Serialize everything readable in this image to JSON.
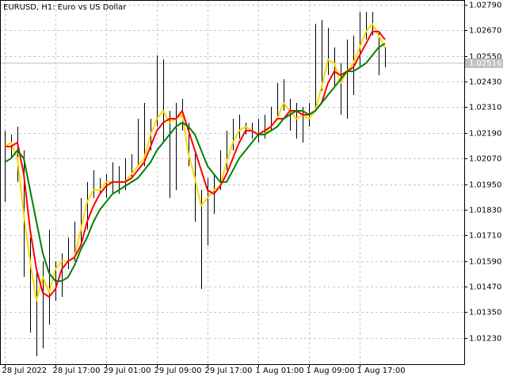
{
  "chart_data": {
    "type": "ohlc",
    "title": "EURUSD, H1:  Euro vs US Dollar",
    "categories": [
      "28 Jul 2022",
      null,
      null,
      null,
      null,
      null,
      null,
      null,
      "28 Jul 17:00",
      null,
      null,
      null,
      null,
      null,
      null,
      null,
      "29 Jul 01:00",
      null,
      null,
      null,
      null,
      null,
      null,
      null,
      "29 Jul 09:00",
      null,
      null,
      null,
      null,
      null,
      null,
      null,
      "29 Jul 17:00",
      null,
      null,
      null,
      null,
      null,
      null,
      null,
      "1 Aug 01:00",
      null,
      null,
      null,
      null,
      null,
      null,
      null,
      "1 Aug 09:00",
      null,
      null,
      null,
      null,
      null,
      null,
      null,
      "1 Aug 17:00",
      null,
      null,
      null,
      null
    ],
    "high": [
      1.022,
      1.02182,
      1.02219,
      1.02108,
      1.017,
      1.01552,
      1.01589,
      1.01737,
      1.01589,
      1.01626,
      1.017,
      1.01774,
      1.01885,
      1.0196,
      1.02015,
      1.01978,
      1.01997,
      1.02052,
      1.02034,
      1.02071,
      1.02089,
      1.02256,
      1.0233,
      1.02256,
      1.02553,
      1.02534,
      1.02293,
      1.0233,
      1.02349,
      1.02238,
      1.02108,
      1.01922,
      1.01978,
      1.01997,
      1.02108,
      1.022,
      1.02256,
      1.02275,
      1.02238,
      1.02238,
      1.02256,
      1.02275,
      1.02312,
      1.02423,
      1.02441,
      1.02349,
      1.0233,
      1.02312,
      1.0233,
      1.02701,
      1.02719,
      1.02682,
      1.0259,
      1.02516,
      1.02627,
      1.02645,
      1.02756,
      1.02756,
      1.02756,
      1.02664,
      1.0259
    ],
    "low": [
      1.01867,
      1.02071,
      1.0196,
      1.01515,
      1.01255,
      1.01144,
      1.01181,
      1.01292,
      1.01404,
      1.01422,
      1.01552,
      1.01589,
      1.01663,
      1.01737,
      1.01885,
      1.01904,
      1.01885,
      1.01904,
      1.01904,
      1.01922,
      1.01978,
      1.02034,
      1.02034,
      1.02108,
      1.02219,
      1.02145,
      1.01885,
      1.01922,
      1.022,
      1.02034,
      1.01774,
      1.01459,
      1.01663,
      1.01811,
      1.01922,
      1.02015,
      1.02108,
      1.02163,
      1.02182,
      1.02163,
      1.02145,
      1.02163,
      1.022,
      1.02256,
      1.02293,
      1.022,
      1.02163,
      1.02145,
      1.02219,
      1.02293,
      1.02386,
      1.0246,
      1.02404,
      1.02275,
      1.02256,
      1.02367,
      1.02497,
      1.02627,
      1.02645,
      1.0246,
      1.02497
    ],
    "bar_color": "#000000",
    "series": [
      {
        "color": "#ffd700",
        "values": [
          1.02126,
          1.02145,
          1.02071,
          1.01811,
          1.01589,
          1.01404,
          1.01515,
          1.01441,
          1.01552,
          1.01589,
          1.01589,
          1.01607,
          1.01737,
          1.01867,
          1.01922,
          1.01922,
          1.0196,
          1.0196,
          1.0196,
          1.0196,
          1.01997,
          1.02034,
          1.02071,
          1.02182,
          1.02256,
          1.02293,
          1.02238,
          1.02256,
          1.02275,
          1.02089,
          1.01978,
          1.01848,
          1.01885,
          1.01922,
          1.01941,
          1.02052,
          1.02145,
          1.022,
          1.02219,
          1.022,
          1.02182,
          1.02182,
          1.02219,
          1.02256,
          1.0233,
          1.02293,
          1.02256,
          1.02275,
          1.02256,
          1.02293,
          1.02404,
          1.02534,
          1.02516,
          1.02423,
          1.02478,
          1.02516,
          1.0259,
          1.02664,
          1.02701,
          1.02645,
          1.0259
        ]
      },
      {
        "color": "#ff0000",
        "values": [
          1.02126,
          1.02126,
          1.02145,
          1.01997,
          1.01737,
          1.01552,
          1.01441,
          1.01422,
          1.01459,
          1.01552,
          1.01589,
          1.01607,
          1.01663,
          1.01774,
          1.01848,
          1.01904,
          1.01941,
          1.0196,
          1.0196,
          1.0196,
          1.01978,
          1.02015,
          1.02052,
          1.02126,
          1.022,
          1.02238,
          1.02256,
          1.02256,
          1.02293,
          1.022,
          1.02108,
          1.02015,
          1.01922,
          1.01904,
          1.01941,
          1.01997,
          1.02071,
          1.02145,
          1.022,
          1.022,
          1.02182,
          1.022,
          1.02219,
          1.02256,
          1.02256,
          1.02293,
          1.02293,
          1.02275,
          1.02275,
          1.02293,
          1.0233,
          1.02423,
          1.02478,
          1.0246,
          1.02478,
          1.02497,
          1.02553,
          1.02608,
          1.02664,
          1.02664,
          1.02627
        ]
      },
      {
        "color": "#008000",
        "values": [
          1.02052,
          1.02071,
          1.02108,
          1.02071,
          1.01922,
          1.01774,
          1.01626,
          1.01533,
          1.01496,
          1.01496,
          1.01515,
          1.0157,
          1.01644,
          1.017,
          1.01774,
          1.0183,
          1.01867,
          1.01904,
          1.01922,
          1.01941,
          1.0196,
          1.01978,
          1.02015,
          1.02052,
          1.02108,
          1.02145,
          1.02182,
          1.02219,
          1.02238,
          1.02219,
          1.02182,
          1.02108,
          1.02034,
          1.01997,
          1.0196,
          1.0196,
          1.02015,
          1.02071,
          1.02108,
          1.02145,
          1.02182,
          1.02182,
          1.022,
          1.02219,
          1.02256,
          1.02275,
          1.02293,
          1.02293,
          1.02275,
          1.02293,
          1.0233,
          1.02367,
          1.02404,
          1.02441,
          1.02478,
          1.02478,
          1.02497,
          1.02516,
          1.02553,
          1.0259,
          1.02608
        ]
      }
    ],
    "current_price": 1.02516,
    "ylim": [
      1.01107,
      1.02812
    ],
    "yticks": [
      {
        "value": 1.0279,
        "label": "1.02790"
      },
      {
        "value": 1.0267,
        "label": "1.02670"
      },
      {
        "value": 1.0255,
        "label": "1.02550"
      },
      {
        "value": 1.0243,
        "label": "1.02430"
      },
      {
        "value": 1.0231,
        "label": "1.02310"
      },
      {
        "value": 1.0219,
        "label": "1.02190"
      },
      {
        "value": 1.0207,
        "label": "1.02070"
      },
      {
        "value": 1.0195,
        "label": "1.01950"
      },
      {
        "value": 1.0183,
        "label": "1.01830"
      },
      {
        "value": 1.0171,
        "label": "1.01710"
      },
      {
        "value": 1.0159,
        "label": "1.01590"
      },
      {
        "value": 1.0147,
        "label": "1.01470"
      },
      {
        "value": 1.0135,
        "label": "1.01350"
      },
      {
        "value": 1.0123,
        "label": "1.01230"
      }
    ],
    "grid": true
  }
}
